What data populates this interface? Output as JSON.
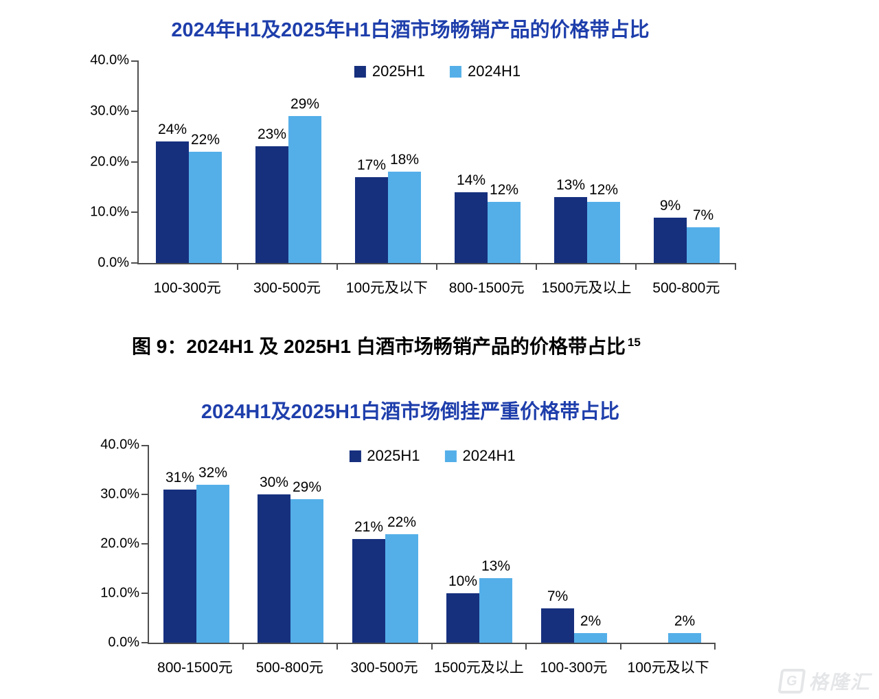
{
  "colors": {
    "title_blue": "#1E3EAB",
    "series_2025": "#16307E",
    "series_2024": "#54AFE9",
    "axis_gray": "#4f4f4f",
    "watermark_gray": "#e4e6e8"
  },
  "caption": {
    "text": "图 9：2024H1 及 2025H1 白酒市场畅销产品的价格带占比",
    "superscript": "15"
  },
  "watermark": {
    "logo": "G",
    "text": "格隆汇"
  },
  "chart_data": [
    {
      "type": "bar",
      "title": "2024年H1及2025年H1白酒市场畅销产品的价格带占比",
      "categories": [
        "100-300元",
        "300-500元",
        "100元及以下",
        "800-1500元",
        "1500元及以上",
        "500-800元"
      ],
      "series": [
        {
          "name": "2025H1",
          "color": "#16307E",
          "values": [
            24,
            23,
            17,
            14,
            13,
            9
          ]
        },
        {
          "name": "2024H1",
          "color": "#54AFE9",
          "values": [
            22,
            29,
            18,
            12,
            12,
            7
          ]
        }
      ],
      "data_label_suffix": "%",
      "ylim": [
        0,
        40
      ],
      "y_ticks": [
        "0.0%",
        "10.0%",
        "20.0%",
        "30.0%",
        "40.0%"
      ],
      "grid": false,
      "legend_position": "top-center"
    },
    {
      "type": "bar",
      "title": "2024H1及2025H1白酒市场倒挂严重价格带占比",
      "categories": [
        "800-1500元",
        "500-800元",
        "300-500元",
        "1500元及以上",
        "100-300元",
        "100元及以下"
      ],
      "series": [
        {
          "name": "2025H1",
          "color": "#16307E",
          "values": [
            31,
            30,
            21,
            10,
            7,
            null
          ]
        },
        {
          "name": "2024H1",
          "color": "#54AFE9",
          "values": [
            32,
            29,
            22,
            13,
            2,
            2
          ]
        }
      ],
      "data_label_suffix": "%",
      "ylim": [
        0,
        40
      ],
      "y_ticks": [
        "0.0%",
        "10.0%",
        "20.0%",
        "30.0%",
        "40.0%"
      ],
      "grid": false,
      "legend_position": "top-center"
    }
  ]
}
